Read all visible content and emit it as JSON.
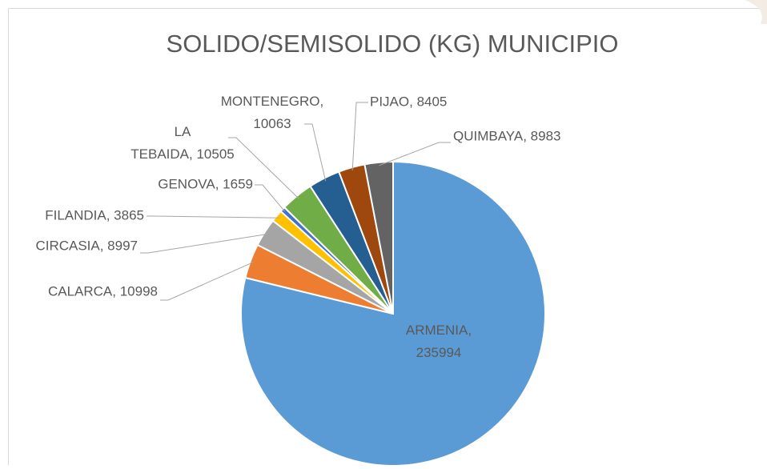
{
  "chart_data": {
    "type": "pie",
    "title": "SOLIDO/SEMISOLIDO (KG) MUNICIPIO",
    "categories": [
      "ARMENIA",
      "CALARCA",
      "CIRCASIA",
      "FILANDIA",
      "GENOVA",
      "LA TEBAIDA",
      "MONTENEGRO",
      "PIJAO",
      "QUIMBAYA"
    ],
    "values": [
      235994,
      10998,
      8997,
      3865,
      1659,
      10505,
      10063,
      8405,
      8983
    ],
    "value_labels": [
      "ARMENIA, 235994",
      "CALARCA, 10998",
      "CIRCASIA, 8997",
      "FILANDIA, 3865",
      "GENOVA, 1659",
      "LA TEBAIDA, 10505",
      "MONTENEGRO, 10063",
      "PIJAO, 8405",
      "QUIMBAYA, 8983"
    ],
    "colors": [
      "#5b9bd5",
      "#ed7d31",
      "#a5a5a5",
      "#ffc000",
      "#4472c4",
      "#70ad47",
      "#255e91",
      "#9e480e",
      "#636363"
    ]
  }
}
